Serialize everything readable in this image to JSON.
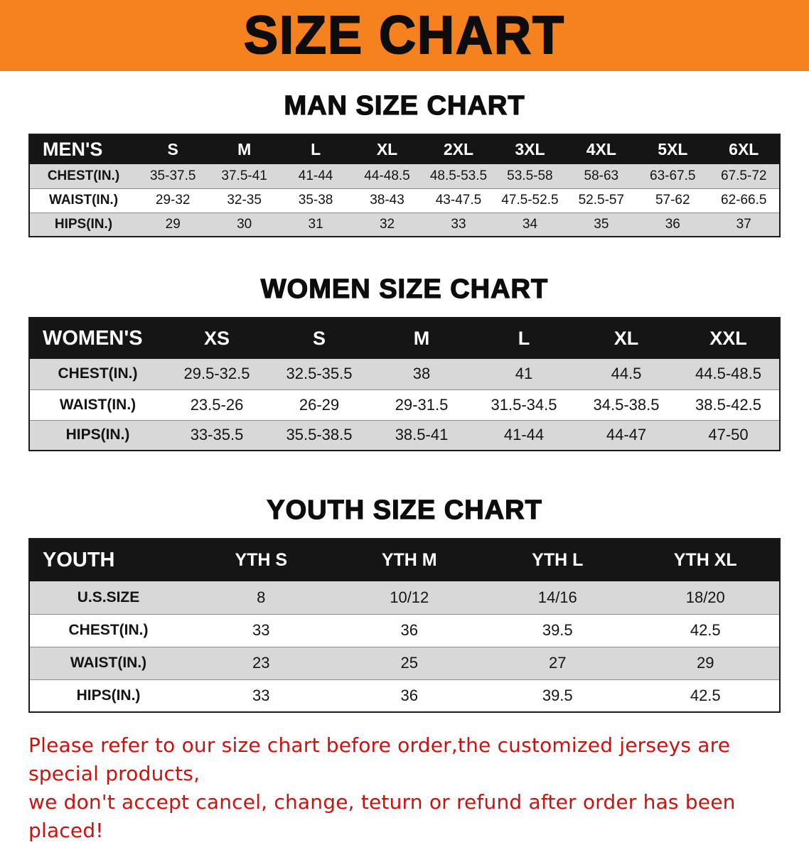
{
  "banner": {
    "title": "SIZE CHART"
  },
  "colors": {
    "banner_bg": "#f5821f",
    "header_bg": "#151515",
    "row_alt_bg": "#d8d8d8",
    "disclaimer_red": "#cc1111"
  },
  "sections": [
    {
      "heading": "MAN SIZE CHART",
      "table": {
        "corner_label": "MEN'S",
        "columns": [
          "S",
          "M",
          "L",
          "XL",
          "2XL",
          "3XL",
          "4XL",
          "5XL",
          "6XL"
        ],
        "rows": [
          {
            "label": "CHEST(IN.)",
            "values": [
              "35-37.5",
              "37.5-41",
              "41-44",
              "44-48.5",
              "48.5-53.5",
              "53.5-58",
              "58-63",
              "63-67.5",
              "67.5-72"
            ]
          },
          {
            "label": "WAIST(IN.)",
            "values": [
              "29-32",
              "32-35",
              "35-38",
              "38-43",
              "43-47.5",
              "47.5-52.5",
              "52.5-57",
              "57-62",
              "62-66.5"
            ]
          },
          {
            "label": "HIPS(IN.)",
            "values": [
              "29",
              "30",
              "31",
              "32",
              "33",
              "34",
              "35",
              "36",
              "37"
            ]
          }
        ]
      }
    },
    {
      "heading": "WOMEN SIZE CHART",
      "table": {
        "corner_label": "WOMEN'S",
        "columns": [
          "XS",
          "S",
          "M",
          "L",
          "XL",
          "XXL"
        ],
        "rows": [
          {
            "label": "CHEST(IN.)",
            "values": [
              "29.5-32.5",
              "32.5-35.5",
              "38",
              "41",
              "44.5",
              "44.5-48.5"
            ]
          },
          {
            "label": "WAIST(IN.)",
            "values": [
              "23.5-26",
              "26-29",
              "29-31.5",
              "31.5-34.5",
              "34.5-38.5",
              "38.5-42.5"
            ]
          },
          {
            "label": "HIPS(IN.)",
            "values": [
              "33-35.5",
              "35.5-38.5",
              "38.5-41",
              "41-44",
              "44-47",
              "47-50"
            ]
          }
        ]
      }
    },
    {
      "heading": "YOUTH SIZE CHART",
      "table": {
        "corner_label": "YOUTH",
        "columns": [
          "YTH S",
          "YTH M",
          "YTH L",
          "YTH XL"
        ],
        "rows": [
          {
            "label": "U.S.SIZE",
            "values": [
              "8",
              "10/12",
              "14/16",
              "18/20"
            ]
          },
          {
            "label": "CHEST(IN.)",
            "values": [
              "33",
              "36",
              "39.5",
              "42.5"
            ]
          },
          {
            "label": "WAIST(IN.)",
            "values": [
              "23",
              "25",
              "27",
              "29"
            ]
          },
          {
            "label": "HIPS(IN.)",
            "values": [
              "33",
              "36",
              "39.5",
              "42.5"
            ]
          }
        ]
      }
    }
  ],
  "disclaimer": {
    "line1": "Please refer to our size chart before order,the customized jerseys are special products,",
    "line2": "we don't accept cancel, change, teturn or refund after order has been placed!"
  }
}
